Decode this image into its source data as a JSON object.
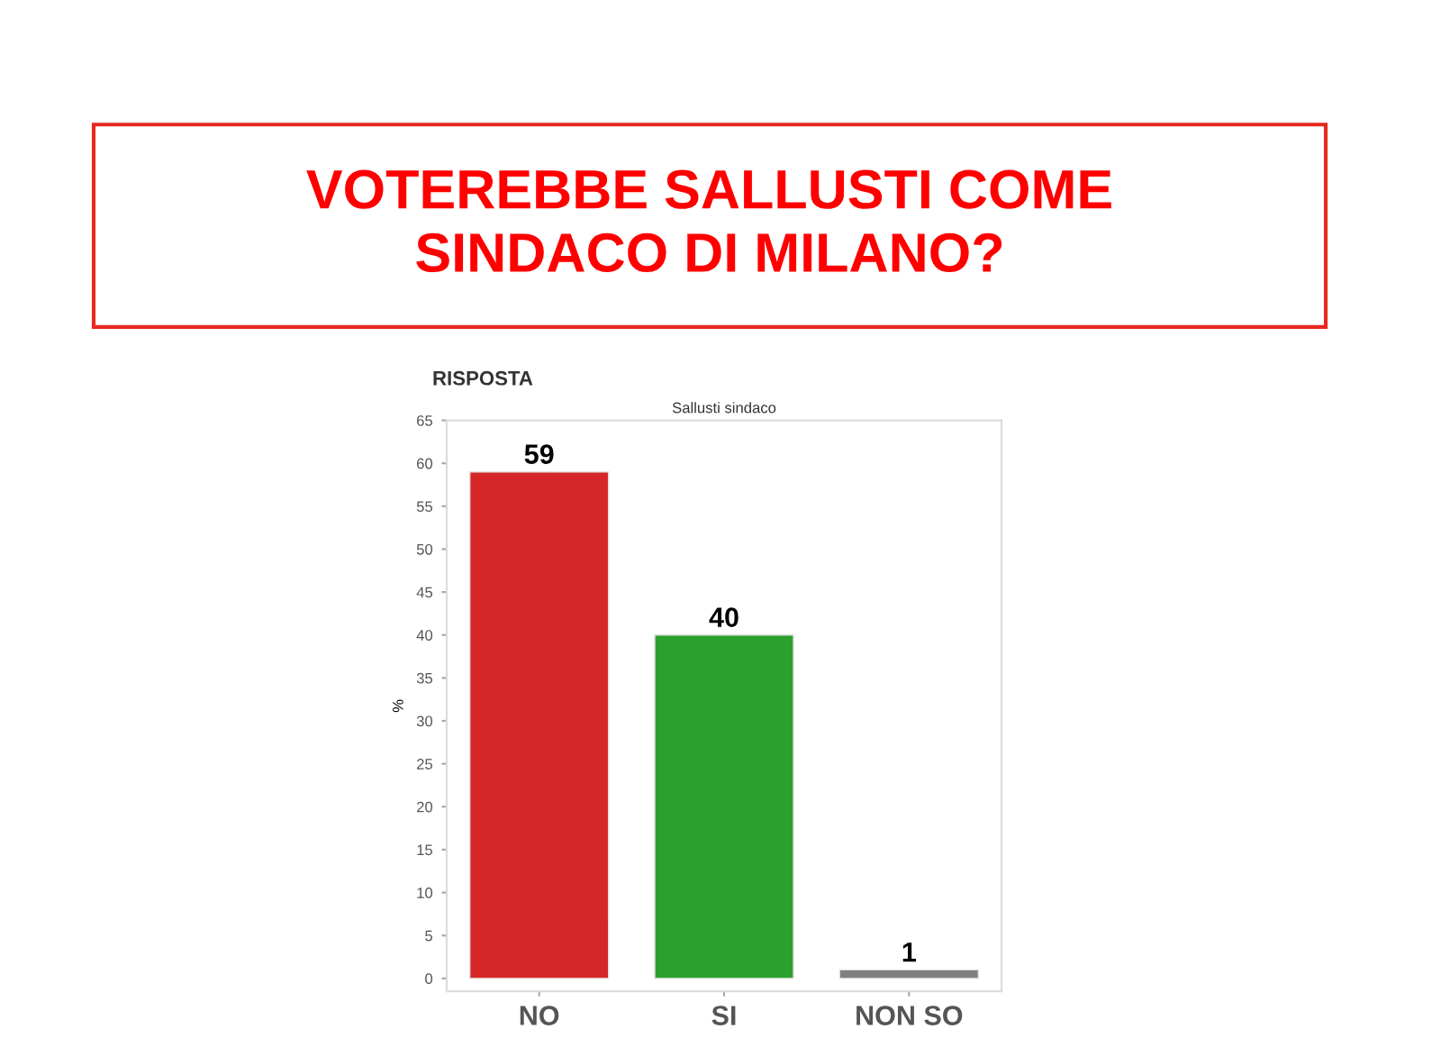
{
  "chart_data": {
    "type": "bar",
    "title": "VOTEREBBE SALLUSTI COME SINDACO DI MILANO?",
    "subtitle": "Sallusti sindaco",
    "ylabel": "%",
    "annotations": [
      "RISPOSTA"
    ],
    "categories": [
      "NO",
      "SI",
      "NON SO"
    ],
    "values": [
      59,
      40,
      1
    ],
    "colors": [
      "#d62728",
      "#2ca02c",
      "#808080"
    ],
    "ylim": [
      -1.5,
      65
    ],
    "yticks": [
      0,
      5,
      10,
      15,
      20,
      25,
      30,
      35,
      40,
      45,
      50,
      55,
      60,
      65
    ],
    "data_labels": true,
    "grid": false,
    "legend": false
  }
}
